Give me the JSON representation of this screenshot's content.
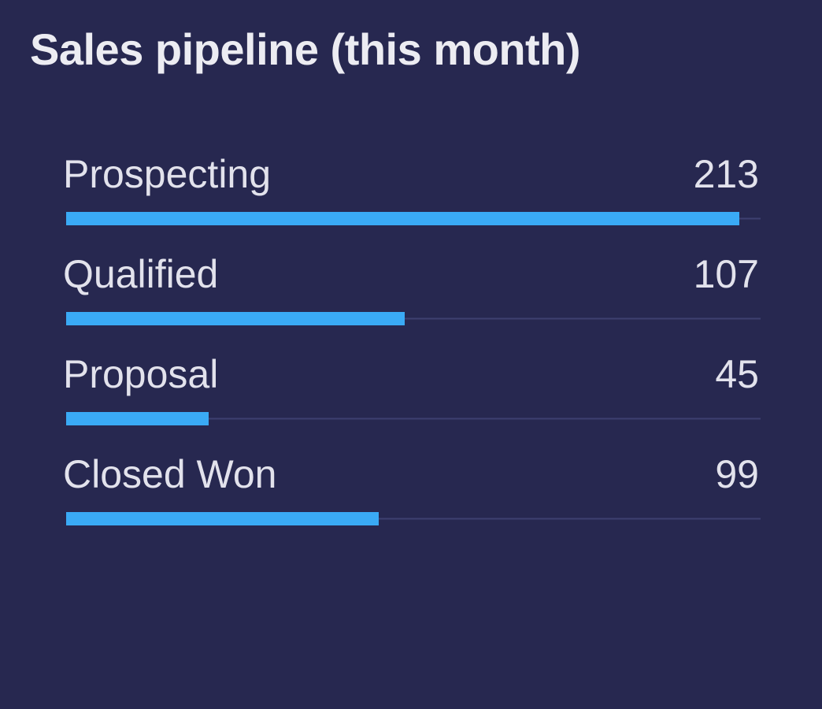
{
  "chart_data": {
    "type": "bar",
    "orientation": "horizontal",
    "title": "Sales pipeline (this month)",
    "categories": [
      "Prospecting",
      "Qualified",
      "Proposal",
      "Closed Won"
    ],
    "values": [
      213,
      107,
      45,
      99
    ],
    "xlim": [
      0,
      220
    ],
    "grid": false,
    "legend": "none"
  },
  "colors": {
    "background": "#272850",
    "bar": "#3AAAF5",
    "track": "#3E4070",
    "text": "#E2E2EC"
  }
}
